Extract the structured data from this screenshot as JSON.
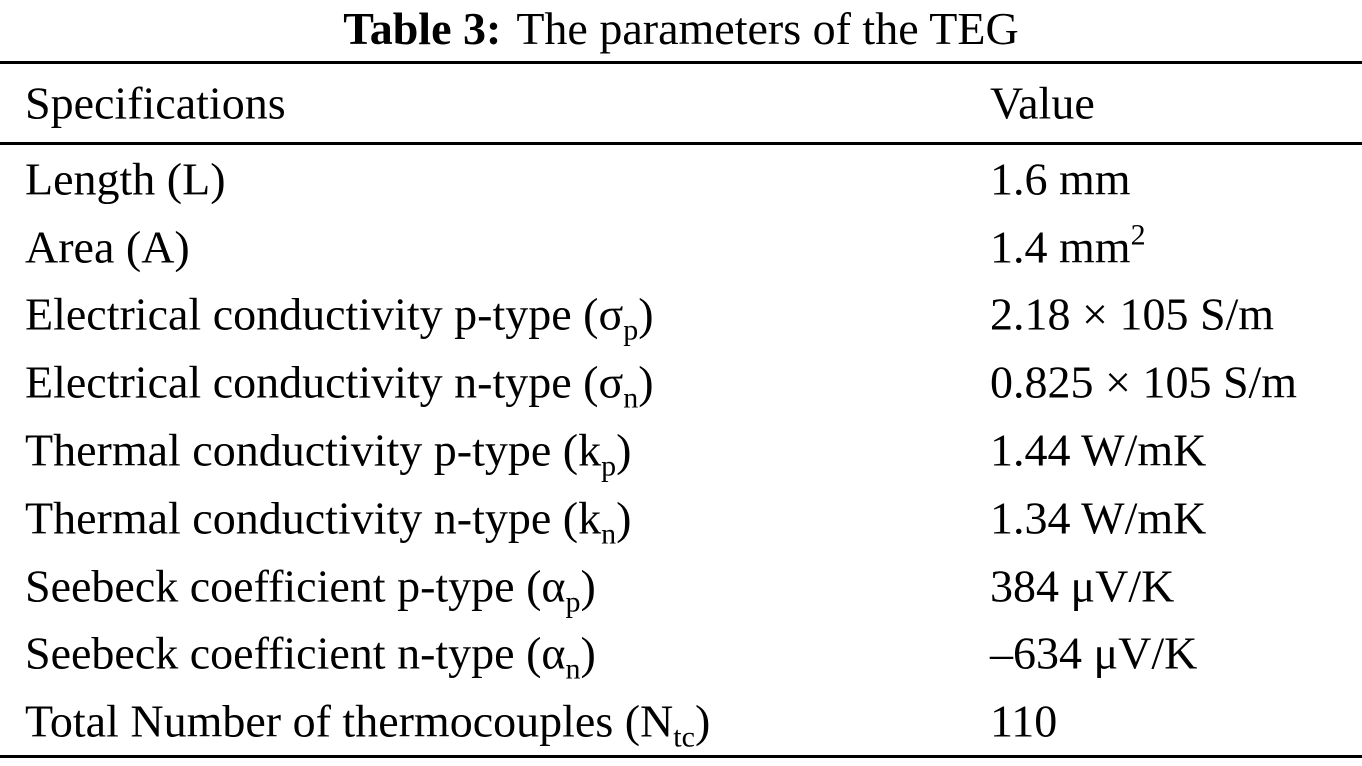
{
  "title": {
    "label": "Table 3:",
    "text": "The parameters of the TEG"
  },
  "table": {
    "headers": {
      "spec": "Specifications",
      "value": "Value"
    },
    "rows": [
      {
        "spec": "Length (L)",
        "value": "1.6 mm"
      },
      {
        "spec": "Area (A)",
        "value": "1.4 mm",
        "value_sup": "2"
      },
      {
        "spec": "Electrical conductivity p-type (σ",
        "spec_sub": "p",
        "spec_end": ")",
        "value": "2.18 × 105 S/m"
      },
      {
        "spec": "Electrical conductivity n-type (σ",
        "spec_sub": "n",
        "spec_end": ")",
        "value": "0.825 × 105 S/m"
      },
      {
        "spec": "Thermal conductivity p-type (k",
        "spec_sub": "p",
        "spec_end": ")",
        "value": "1.44 W/mK"
      },
      {
        "spec": "Thermal conductivity n-type (k",
        "spec_sub": "n",
        "spec_end": ")",
        "value": "1.34 W/mK"
      },
      {
        "spec": "Seebeck coefficient p-type (α",
        "spec_sub": "p",
        "spec_end": ")",
        "value": "384 μV/K"
      },
      {
        "spec": "Seebeck coefficient n-type (α",
        "spec_sub": "n",
        "spec_end": ")",
        "value": "–634 μV/K"
      },
      {
        "spec": "Total Number of thermocouples (N",
        "spec_sub": "tc",
        "spec_end": ")",
        "value": "110"
      }
    ]
  }
}
